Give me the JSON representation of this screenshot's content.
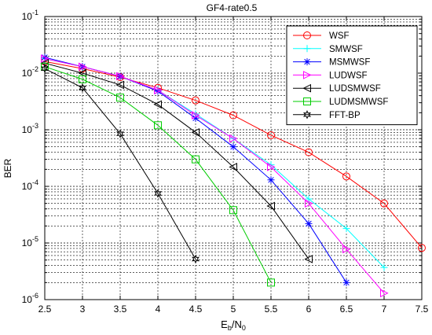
{
  "chart_data": {
    "type": "line",
    "title": "GF4-rate0.5",
    "xlabel": "Eb/N0",
    "xlabel_main": "E",
    "xlabel_sub1": "b",
    "xlabel_mid": "/N",
    "xlabel_sub2": "0",
    "ylabel": "BER",
    "xlim": [
      2.5,
      7.5
    ],
    "ylim": [
      1e-06,
      0.1
    ],
    "yscale": "log",
    "grid": true,
    "legend_position": "top-right",
    "xticks": [
      "2.5",
      "3",
      "3.5",
      "4",
      "4.5",
      "5",
      "5.5",
      "6",
      "6.5",
      "7",
      "7.5"
    ],
    "yticks": [
      {
        "base": "10",
        "exp": "-6"
      },
      {
        "base": "10",
        "exp": "-5"
      },
      {
        "base": "10",
        "exp": "-4"
      },
      {
        "base": "10",
        "exp": "-3"
      },
      {
        "base": "10",
        "exp": "-2"
      },
      {
        "base": "10",
        "exp": "-1"
      }
    ],
    "series": [
      {
        "name": "WSF",
        "color": "#ff0000",
        "marker": "circle",
        "x": [
          2.5,
          3,
          3.5,
          4,
          4.5,
          5,
          5.5,
          6,
          6.5,
          7,
          7.5
        ],
        "y": [
          0.016,
          0.012,
          0.0085,
          0.0055,
          0.0033,
          0.0018,
          0.0008,
          0.0004,
          0.00015,
          5e-05,
          8.2e-06
        ]
      },
      {
        "name": "SMWSF",
        "color": "#00ffff",
        "marker": "plus",
        "x": [
          2.5,
          3,
          3.5,
          4,
          4.5,
          5,
          5.5,
          6,
          6.5,
          7
        ],
        "y": [
          0.018,
          0.013,
          0.0088,
          0.005,
          0.0019,
          0.0007,
          0.00024,
          6e-05,
          1.8e-05,
          3.7e-06
        ]
      },
      {
        "name": "MSMWSF",
        "color": "#0000ff",
        "marker": "star",
        "x": [
          2.5,
          3,
          3.5,
          4,
          4.5,
          5,
          5.5,
          6,
          6.5
        ],
        "y": [
          0.019,
          0.013,
          0.0088,
          0.0048,
          0.0016,
          0.0005,
          0.00013,
          2.2e-05,
          2e-06
        ]
      },
      {
        "name": "LUDWSF",
        "color": "#ff00ff",
        "marker": "triangle-right",
        "x": [
          2.5,
          3,
          3.5,
          4,
          4.5,
          5,
          5.5,
          6,
          6.5,
          7
        ],
        "y": [
          0.018,
          0.013,
          0.0088,
          0.005,
          0.0018,
          0.0007,
          0.00022,
          5e-05,
          7.8e-06,
          1.3e-06
        ]
      },
      {
        "name": "LUDSMWSF",
        "color": "#000000",
        "marker": "triangle-left",
        "x": [
          2.5,
          3,
          3.5,
          4,
          4.5,
          5,
          5.5,
          6
        ],
        "y": [
          0.015,
          0.01,
          0.0062,
          0.0028,
          0.0009,
          0.00022,
          4.5e-05,
          5.2e-06
        ]
      },
      {
        "name": "LUDMSMWSF",
        "color": "#00cc00",
        "marker": "square",
        "x": [
          2.5,
          3,
          3.5,
          4,
          4.5,
          5,
          5.5
        ],
        "y": [
          0.013,
          0.0078,
          0.0037,
          0.0012,
          0.0003,
          3.8e-05,
          2e-06
        ]
      },
      {
        "name": "FFT-BP",
        "color": "#000000",
        "marker": "hexagram",
        "x": [
          2.5,
          3,
          3.5,
          4,
          4.5
        ],
        "y": [
          0.012,
          0.0055,
          0.00085,
          7.5e-05,
          5.2e-06
        ]
      }
    ]
  }
}
